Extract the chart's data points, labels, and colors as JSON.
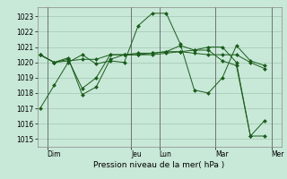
{
  "bg_color": "#c8e8d8",
  "grid_color": "#a0c8b0",
  "line_color": "#1a5c1a",
  "marker_color": "#1a5c1a",
  "ylabel_ticks": [
    1015,
    1016,
    1017,
    1018,
    1019,
    1020,
    1021,
    1022,
    1023
  ],
  "ylim": [
    1014.5,
    1023.6
  ],
  "xlabel": "Pression niveau de la mer( hPa )",
  "day_labels": [
    "Dim",
    "Jeu",
    "Lun",
    "Mar",
    "Mer"
  ],
  "day_positions": [
    0.5,
    6.5,
    8.5,
    12.5,
    16.5
  ],
  "xlim": [
    -0.2,
    17.2
  ],
  "series": [
    {
      "x": [
        0,
        1,
        2,
        3,
        4,
        5,
        6,
        7,
        8,
        9,
        10,
        11,
        12,
        13,
        14,
        15,
        16
      ],
      "y": [
        1017.0,
        1018.5,
        1020.0,
        1020.5,
        1019.9,
        1020.1,
        1020.0,
        1022.4,
        1023.2,
        1023.2,
        1021.2,
        1018.2,
        1018.0,
        1019.0,
        1021.1,
        1020.1,
        1019.8
      ]
    },
    {
      "x": [
        0,
        1,
        2,
        3,
        4,
        5,
        6,
        7,
        8,
        9,
        10,
        11,
        12,
        13,
        14,
        15,
        16
      ],
      "y": [
        1020.5,
        1020.0,
        1020.1,
        1020.2,
        1020.2,
        1020.5,
        1020.5,
        1020.6,
        1020.6,
        1020.7,
        1020.7,
        1020.6,
        1020.5,
        1020.5,
        1020.5,
        1020.0,
        1019.6
      ]
    },
    {
      "x": [
        0,
        1,
        2,
        3,
        4,
        5,
        6,
        7,
        8,
        9,
        10,
        11,
        12,
        13,
        14,
        15,
        16
      ],
      "y": [
        1020.5,
        1020.0,
        1020.3,
        1017.9,
        1018.4,
        1020.2,
        1020.5,
        1020.5,
        1020.5,
        1020.6,
        1020.7,
        1020.8,
        1020.8,
        1020.1,
        1019.8,
        1015.2,
        1015.2
      ]
    },
    {
      "x": [
        0,
        1,
        2,
        3,
        4,
        5,
        6,
        7,
        8,
        9,
        10,
        11,
        12,
        13,
        14,
        15,
        16
      ],
      "y": [
        1020.5,
        1020.0,
        1020.2,
        1018.3,
        1019.0,
        1020.5,
        1020.5,
        1020.5,
        1020.6,
        1020.7,
        1021.1,
        1020.8,
        1021.0,
        1021.0,
        1020.0,
        1015.2,
        1016.2
      ]
    }
  ],
  "vlines": [
    0.5,
    6.5,
    8.5,
    12.5,
    16.5
  ]
}
